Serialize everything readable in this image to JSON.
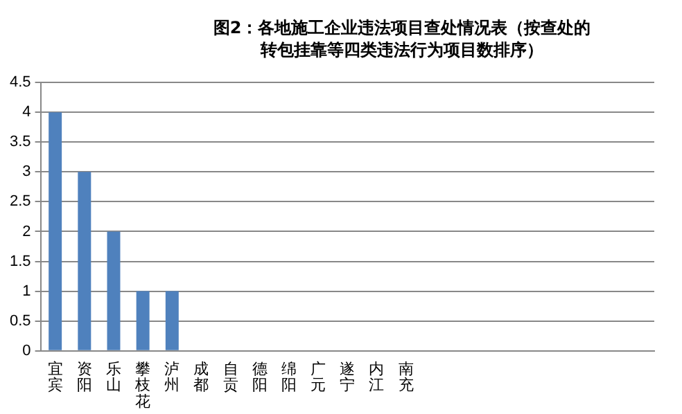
{
  "chart_data": {
    "type": "bar",
    "title": "图2：各地施工企业违法项目查处情况表（按查处的转包挂靠等四类违法行为项目数排序）",
    "categories": [
      "宜宾",
      "资阳",
      "乐山",
      "攀枝花",
      "泸州",
      "成都",
      "自贡",
      "德阳",
      "绵阳",
      "广元",
      "遂宁",
      "内江",
      "南充",
      null,
      null,
      null,
      null,
      null,
      null,
      null,
      null
    ],
    "values": [
      4,
      3,
      2,
      1,
      1,
      0,
      0,
      0,
      0,
      0,
      0,
      0,
      0,
      0,
      0,
      0,
      0,
      0,
      0,
      0,
      0
    ],
    "color": "#4f81bd",
    "ylim": [
      0,
      4.5
    ],
    "yticks": [
      0,
      0.5,
      1,
      1.5,
      2,
      2.5,
      3,
      3.5,
      4,
      4.5
    ],
    "grid": "y",
    "legend": false
  }
}
